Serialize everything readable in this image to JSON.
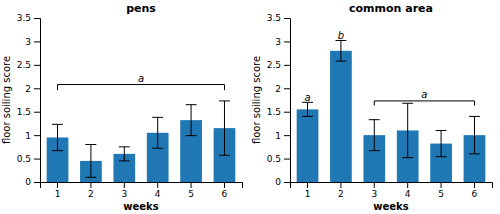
{
  "chart_data": [
    {
      "type": "bar",
      "title": "pens",
      "categories": [
        "1",
        "2",
        "3",
        "4",
        "5",
        "6"
      ],
      "values": [
        0.95,
        0.45,
        0.6,
        1.05,
        1.32,
        1.15
      ],
      "errors": [
        0.28,
        0.35,
        0.15,
        0.33,
        0.33,
        0.58
      ],
      "xlabel": "weeks",
      "ylabel": "floor soiling score",
      "ylim": [
        0,
        3.5
      ],
      "yticks": [
        0,
        0.5,
        1,
        1.5,
        2,
        2.5,
        3,
        3.5
      ],
      "annotations": [
        {
          "type": "bracket",
          "text": "a",
          "x": [
            "1",
            "6"
          ],
          "y": 2.08,
          "drop": 0.12
        }
      ]
    },
    {
      "type": "bar",
      "title": "common area",
      "categories": [
        "1",
        "2",
        "3",
        "4",
        "5",
        "6"
      ],
      "values": [
        1.55,
        2.8,
        1.0,
        1.1,
        0.82,
        1.0
      ],
      "errors": [
        0.15,
        0.22,
        0.33,
        0.58,
        0.28,
        0.4
      ],
      "xlabel": "weeks",
      "ylabel": "floor soiling score",
      "ylim": [
        0,
        3.5
      ],
      "yticks": [
        0,
        0.5,
        1,
        1.5,
        2,
        2.5,
        3,
        3.5
      ],
      "annotations": [
        {
          "type": "label",
          "text": "a",
          "x": "1",
          "y": 1.73
        },
        {
          "type": "label",
          "text": "b",
          "x": "2",
          "y": 3.06
        },
        {
          "type": "bracket",
          "text": "a",
          "x": [
            "3",
            "6"
          ],
          "y": 1.73,
          "drop": 0.1
        }
      ]
    }
  ]
}
